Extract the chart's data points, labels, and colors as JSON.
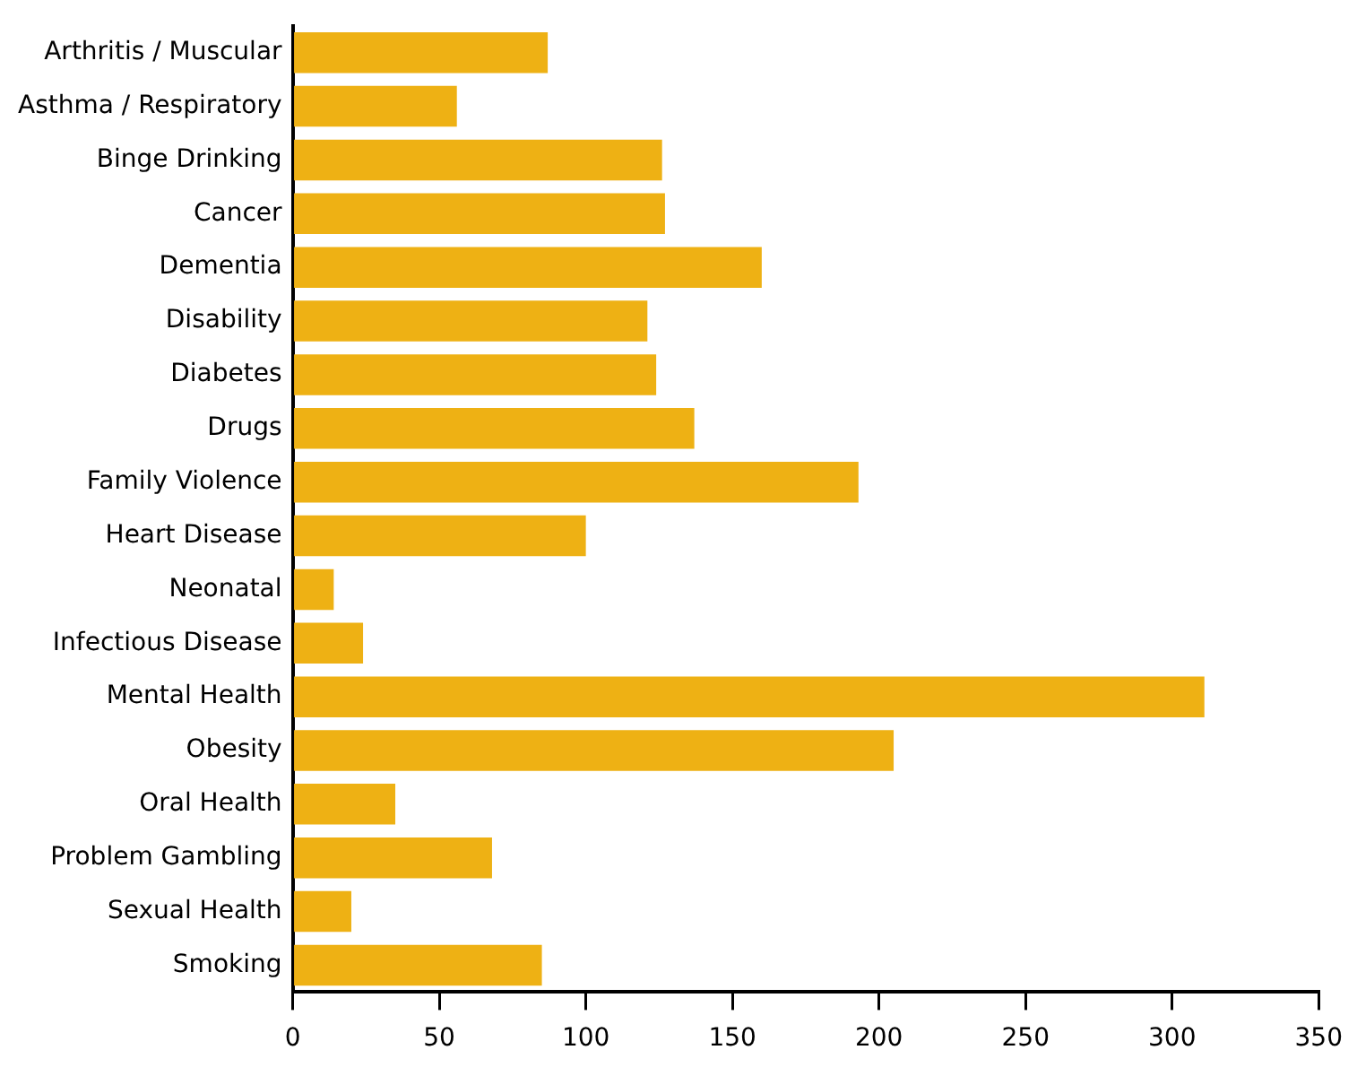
{
  "chart_data": {
    "type": "bar",
    "orientation": "horizontal",
    "categories": [
      "Arthritis / Muscular",
      "Asthma / Respiratory",
      "Binge Drinking",
      "Cancer",
      "Dementia",
      "Disability",
      "Diabetes",
      "Drugs",
      "Family Violence",
      "Heart Disease",
      "Neonatal",
      "Infectious Disease",
      "Mental Health",
      "Obesity",
      "Oral Health",
      "Problem Gambling",
      "Sexual Health",
      "Smoking"
    ],
    "values": [
      87,
      56,
      126,
      127,
      160,
      121,
      124,
      137,
      193,
      100,
      14,
      24,
      311,
      205,
      35,
      68,
      20,
      85
    ],
    "color": "#eeb114",
    "xlim": [
      0,
      350
    ],
    "xticks": [
      0,
      50,
      100,
      150,
      200,
      250,
      300,
      350
    ],
    "grid": false,
    "legend": false
  }
}
